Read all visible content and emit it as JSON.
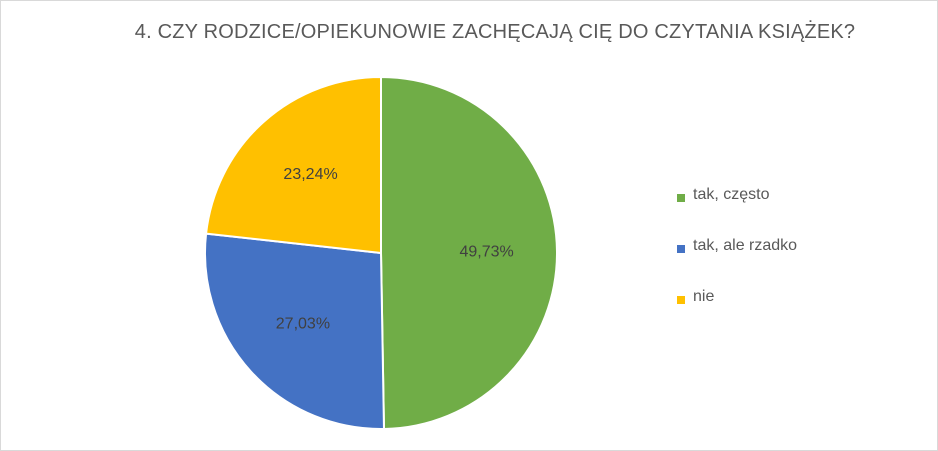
{
  "chart_data": {
    "type": "pie",
    "title": "4. CZY RODZICE/OPIEKUNOWIE ZACHĘCAJĄ CIĘ DO CZYTANIA KSIĄŻEK?",
    "legend_position": "right",
    "slices": [
      {
        "label": "tak, często",
        "value": 49.73,
        "display": "49,73%",
        "color": "#70ad47"
      },
      {
        "label": "tak, ale rzadko",
        "value": 27.03,
        "display": "27,03%",
        "color": "#4472c4"
      },
      {
        "label": "nie",
        "value": 23.24,
        "display": "23,24%",
        "color": "#ffc000"
      }
    ]
  }
}
